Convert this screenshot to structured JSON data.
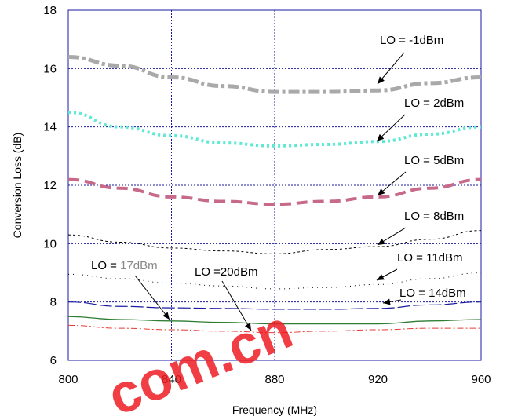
{
  "chart_data": {
    "type": "line",
    "xlabel": "Frequency (MHz)",
    "ylabel": "Conversion Loss (dB)",
    "xlim": [
      800,
      960
    ],
    "ylim": [
      6,
      18
    ],
    "xticks": [
      "800",
      "840",
      "880",
      "920",
      "960"
    ],
    "yticks": [
      "6",
      "8",
      "10",
      "12",
      "14",
      "16",
      "18"
    ],
    "grid": true,
    "series": [
      {
        "name": "LO = -1dBm",
        "color": "#a9a9a9",
        "x": [
          800,
          820,
          840,
          860,
          880,
          900,
          920,
          940,
          960
        ],
        "y": [
          16.4,
          16.1,
          15.7,
          15.4,
          15.2,
          15.2,
          15.25,
          15.5,
          15.7
        ]
      },
      {
        "name": "LO = 2dBm",
        "color": "#5ee8d6",
        "x": [
          800,
          820,
          840,
          860,
          880,
          900,
          920,
          940,
          960
        ],
        "y": [
          14.5,
          14.0,
          13.7,
          13.45,
          13.35,
          13.4,
          13.5,
          13.75,
          14.0
        ]
      },
      {
        "name": "LO = 5dBm",
        "color": "#c76a8a",
        "x": [
          800,
          820,
          840,
          860,
          880,
          900,
          920,
          940,
          960
        ],
        "y": [
          12.2,
          11.9,
          11.6,
          11.45,
          11.35,
          11.45,
          11.6,
          11.9,
          12.2
        ]
      },
      {
        "name": "LO = 8dBm",
        "color": "#000000",
        "x": [
          800,
          820,
          840,
          860,
          880,
          900,
          920,
          940,
          960
        ],
        "y": [
          10.3,
          10.05,
          9.85,
          9.75,
          9.65,
          9.8,
          9.9,
          10.15,
          10.45
        ]
      },
      {
        "name": "LO = 11dBm",
        "color": "#000000",
        "x": [
          800,
          820,
          840,
          860,
          880,
          900,
          920,
          940,
          960
        ],
        "y": [
          8.95,
          8.8,
          8.65,
          8.55,
          8.45,
          8.5,
          8.6,
          8.8,
          9.0
        ]
      },
      {
        "name": "LO = 14dBm",
        "color": "#1a1aa0",
        "x": [
          800,
          820,
          840,
          860,
          880,
          900,
          920,
          940,
          960
        ],
        "y": [
          8.0,
          7.85,
          7.8,
          7.78,
          7.75,
          7.75,
          7.78,
          7.9,
          8.0
        ]
      },
      {
        "name": "LO = 17dBm",
        "color": "#2e7d32",
        "x": [
          800,
          820,
          840,
          860,
          880,
          900,
          920,
          940,
          960
        ],
        "y": [
          7.5,
          7.4,
          7.35,
          7.3,
          7.25,
          7.25,
          7.25,
          7.35,
          7.4
        ]
      },
      {
        "name": "LO =20dBm",
        "color": "#e53935",
        "x": [
          800,
          820,
          840,
          860,
          880,
          900,
          920,
          940,
          960
        ],
        "y": [
          7.2,
          7.1,
          7.05,
          7.0,
          6.95,
          7.0,
          7.05,
          7.1,
          7.1
        ]
      }
    ],
    "annotations": [
      {
        "text": "LO = -1dBm"
      },
      {
        "text": "LO = 2dBm"
      },
      {
        "text": "LO = 5dBm"
      },
      {
        "text": "LO = 8dBm"
      },
      {
        "text": "LO = 11dBm"
      },
      {
        "text": "LO = 14dBm"
      },
      {
        "text": "LO = 17dBm"
      },
      {
        "text": "LO =20dBm"
      }
    ]
  }
}
